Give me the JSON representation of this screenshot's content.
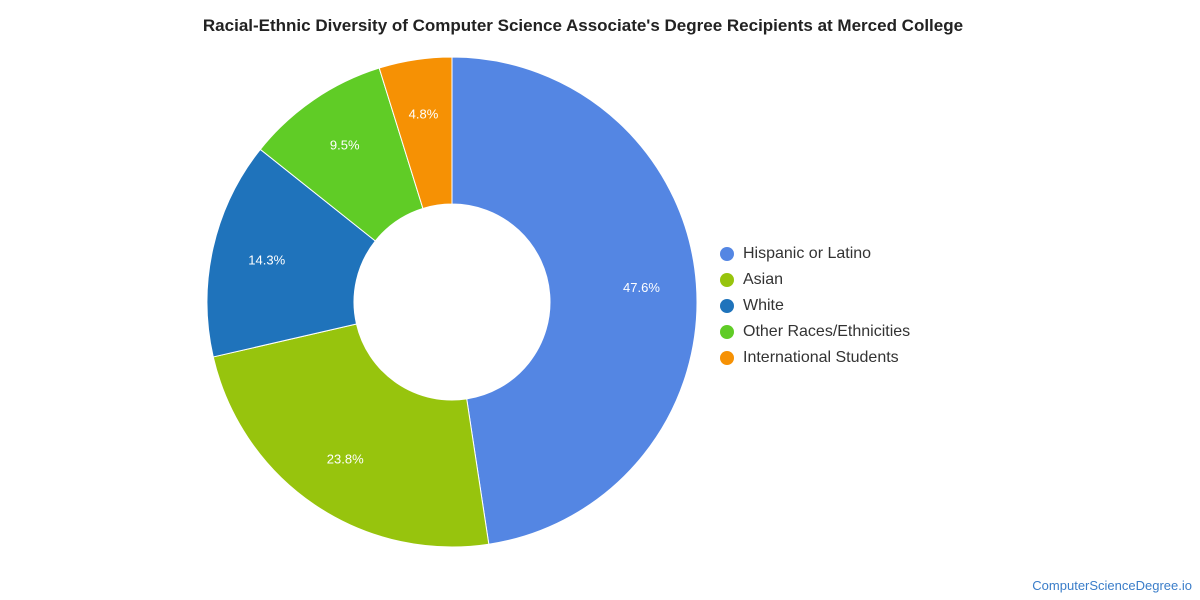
{
  "chart_data": {
    "type": "pie",
    "title": "Racial-Ethnic Diversity of Computer Science Associate's Degree Recipients at Merced College",
    "categories": [
      "Hispanic or Latino",
      "Asian",
      "White",
      "Other Races/Ethnicities",
      "International Students"
    ],
    "values": [
      47.6,
      23.8,
      14.3,
      9.5,
      4.8
    ],
    "value_labels": [
      "47.6%",
      "23.8%",
      "14.3%",
      "9.5%",
      "4.8%"
    ],
    "unit": "%",
    "colors": [
      "#5486e3",
      "#97c40d",
      "#1f73bb",
      "#60cc26",
      "#f69104"
    ],
    "donut": true,
    "legend_position": "right",
    "start": "top, clockwise"
  },
  "source": {
    "label": "ComputerScienceDegree.io"
  }
}
